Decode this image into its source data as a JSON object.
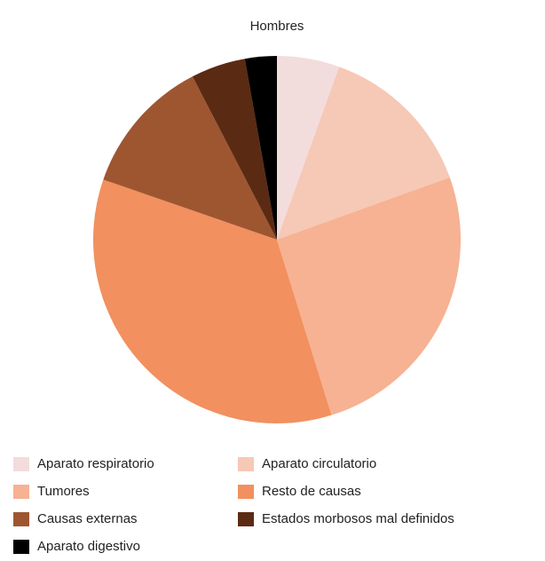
{
  "chart_data": {
    "type": "pie",
    "title": "Hombres",
    "categories": [
      "Aparato respiratorio",
      "Aparato circulatorio",
      "Tumores",
      "Resto de causas",
      "Causas externas",
      "Estados morbosos mal definidos",
      "Aparato digestivo"
    ],
    "values": [
      5.5,
      14,
      25.7,
      35.1,
      12.1,
      4.8,
      2.8
    ],
    "colors": [
      "#f3dcdc",
      "#f6c8b6",
      "#f6b293",
      "#f2905f",
      "#9e5631",
      "#5b2a13",
      "#000000"
    ],
    "legend": "bottom"
  }
}
